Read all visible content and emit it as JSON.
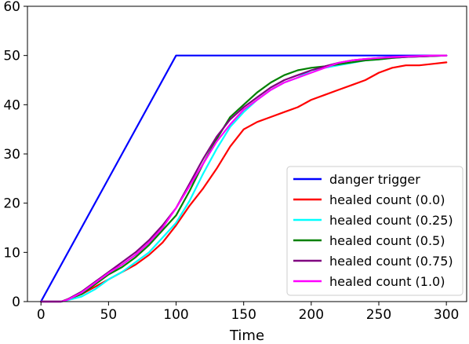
{
  "chart_data": {
    "type": "line",
    "title": "",
    "xlabel": "Time",
    "ylabel": "",
    "xlim": [
      -10,
      315
    ],
    "ylim": [
      0,
      60
    ],
    "xticks": [
      0,
      50,
      100,
      150,
      200,
      250,
      300
    ],
    "yticks": [
      0,
      10,
      20,
      30,
      40,
      50,
      60
    ],
    "grid": false,
    "legend_position": "lower-right",
    "series": [
      {
        "name": "danger trigger",
        "color": "#0000ff",
        "x": [
          0,
          100,
          300
        ],
        "y": [
          0,
          50,
          50
        ]
      },
      {
        "name": "healed count (0.0)",
        "color": "#ff0000",
        "x": [
          0,
          15,
          20,
          30,
          40,
          50,
          60,
          70,
          80,
          90,
          100,
          110,
          120,
          130,
          140,
          150,
          160,
          170,
          180,
          190,
          200,
          210,
          220,
          230,
          240,
          250,
          260,
          270,
          280,
          290,
          300
        ],
        "y": [
          0,
          0,
          0.5,
          1.5,
          3.0,
          4.5,
          6.0,
          7.5,
          9.5,
          12.0,
          15.5,
          19.5,
          23.0,
          27.0,
          31.5,
          35.0,
          36.5,
          37.5,
          38.5,
          39.5,
          41.0,
          42.0,
          43.0,
          44.0,
          45.0,
          46.5,
          47.5,
          48.0,
          48.0,
          48.3,
          48.6
        ]
      },
      {
        "name": "healed count (0.25)",
        "color": "#00ffff",
        "x": [
          0,
          15,
          20,
          30,
          40,
          50,
          60,
          70,
          80,
          90,
          100,
          110,
          120,
          130,
          140,
          150,
          160,
          170,
          180,
          190,
          200,
          210,
          220,
          230,
          240,
          250,
          260,
          270,
          280,
          290,
          300
        ],
        "y": [
          0,
          0,
          0.3,
          1.0,
          2.5,
          4.5,
          6.0,
          8.0,
          10.0,
          13.0,
          16.0,
          20.5,
          26.0,
          31.0,
          35.5,
          38.5,
          41.0,
          43.0,
          44.5,
          45.5,
          47.0,
          47.5,
          48.0,
          48.5,
          49.0,
          49.2,
          49.5,
          49.7,
          49.8,
          49.9,
          50.0
        ]
      },
      {
        "name": "healed count (0.5)",
        "color": "#008000",
        "x": [
          0,
          15,
          20,
          30,
          40,
          50,
          60,
          70,
          80,
          90,
          100,
          110,
          120,
          130,
          140,
          150,
          160,
          170,
          180,
          190,
          200,
          210,
          220,
          230,
          240,
          250,
          260,
          270,
          280,
          290,
          300
        ],
        "y": [
          0,
          0,
          0.5,
          1.5,
          3.5,
          5.5,
          7.0,
          9.0,
          11.5,
          14.5,
          17.5,
          22.5,
          28.0,
          33.0,
          37.5,
          40.0,
          42.5,
          44.5,
          46.0,
          47.0,
          47.5,
          47.8,
          48.2,
          48.6,
          49.0,
          49.2,
          49.5,
          49.7,
          49.8,
          49.9,
          50.0
        ]
      },
      {
        "name": "healed count (0.75)",
        "color": "#800080",
        "x": [
          0,
          15,
          20,
          30,
          40,
          50,
          60,
          70,
          80,
          90,
          100,
          110,
          120,
          130,
          140,
          150,
          160,
          170,
          180,
          190,
          200,
          210,
          220,
          230,
          240,
          250,
          260,
          270,
          280,
          290,
          300
        ],
        "y": [
          0,
          0,
          0.5,
          2.0,
          4.0,
          6.0,
          8.0,
          10.0,
          12.5,
          15.5,
          19.0,
          24.0,
          29.0,
          33.5,
          37.0,
          39.5,
          41.5,
          43.5,
          45.0,
          46.0,
          47.0,
          47.8,
          48.5,
          49.0,
          49.3,
          49.5,
          49.6,
          49.7,
          49.8,
          49.9,
          50.0
        ]
      },
      {
        "name": "healed count (1.0)",
        "color": "#ff00ff",
        "x": [
          0,
          15,
          20,
          30,
          40,
          50,
          60,
          70,
          80,
          90,
          100,
          110,
          120,
          130,
          140,
          150,
          160,
          170,
          180,
          190,
          200,
          210,
          220,
          230,
          240,
          250,
          260,
          270,
          280,
          290,
          300
        ],
        "y": [
          0,
          0,
          0.4,
          1.8,
          3.8,
          5.8,
          7.5,
          9.5,
          12.0,
          15.0,
          19.0,
          23.5,
          28.0,
          32.5,
          36.0,
          39.0,
          41.0,
          43.0,
          44.5,
          45.5,
          46.5,
          47.5,
          48.5,
          49.0,
          49.3,
          49.5,
          49.7,
          49.8,
          49.9,
          50.0,
          50.0
        ]
      }
    ]
  }
}
